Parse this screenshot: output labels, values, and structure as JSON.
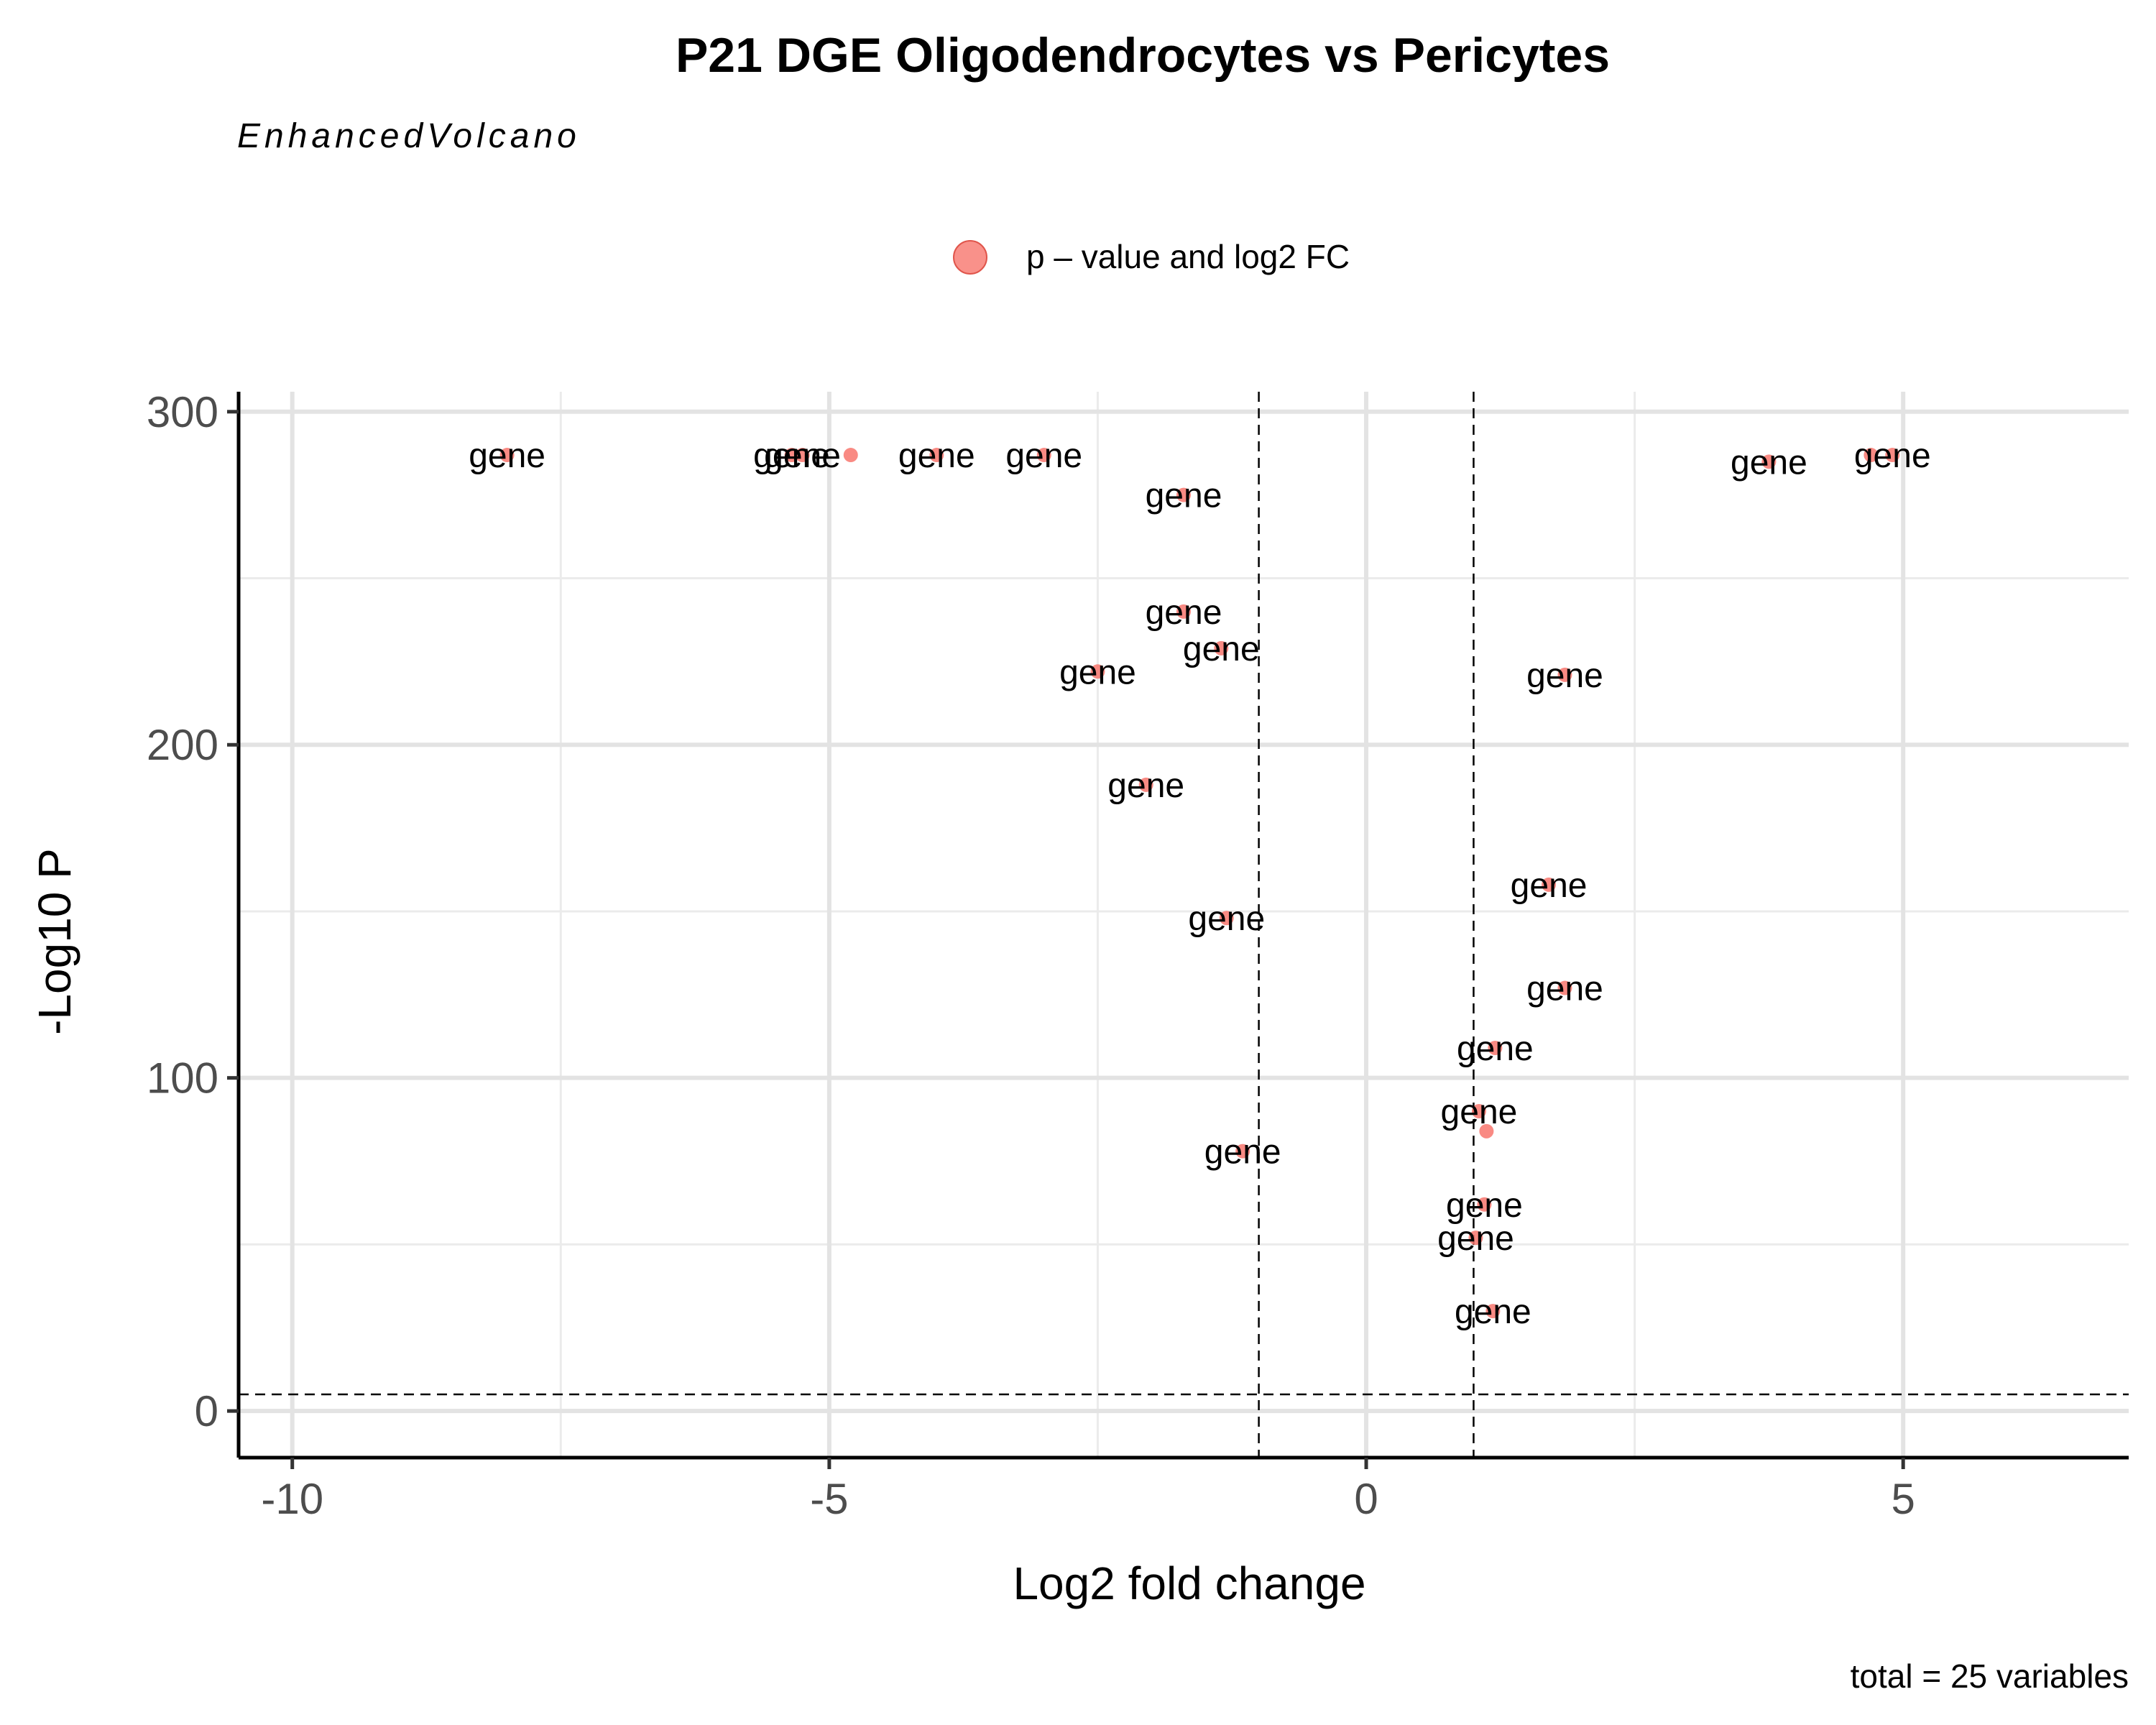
{
  "chart_data": {
    "type": "scatter",
    "title": "P21 DGE Oligodendrocytes vs Pericytes",
    "subtitle": "EnhancedVolcano",
    "xlabel": "Log2 fold change",
    "ylabel": "-Log10 P",
    "caption": "total = 25 variables",
    "legend": {
      "label": "p – value and log2 FC",
      "position": "top-center",
      "color": "#F8766D"
    },
    "xlim": [
      -10.5,
      7.1
    ],
    "ylim": [
      -14,
      306
    ],
    "x_ticks": [
      "-10",
      "-5",
      "0",
      "5"
    ],
    "x_tick_values": [
      -10,
      -5,
      0,
      5
    ],
    "y_ticks": [
      "0",
      "100",
      "200",
      "300"
    ],
    "y_tick_values": [
      0,
      100,
      200,
      300
    ],
    "fc_cutoff": 1,
    "p_cutoff_neglog10": 5,
    "grid": true,
    "point_color": "#F8766D",
    "series": [
      {
        "name": "p – value and log2 FC",
        "points": [
          {
            "x": -8.0,
            "y": 287,
            "label": "gene"
          },
          {
            "x": -5.35,
            "y": 287,
            "label": "gene"
          },
          {
            "x": -5.25,
            "y": 287,
            "label": "gene"
          },
          {
            "x": -4.8,
            "y": 287,
            "label": ""
          },
          {
            "x": -4.0,
            "y": 287,
            "label": "gene"
          },
          {
            "x": -3.0,
            "y": 287,
            "label": "gene"
          },
          {
            "x": -1.7,
            "y": 275,
            "label": "gene"
          },
          {
            "x": -1.7,
            "y": 240,
            "label": "gene"
          },
          {
            "x": -1.35,
            "y": 229,
            "label": "gene"
          },
          {
            "x": -2.5,
            "y": 222,
            "label": "gene"
          },
          {
            "x": -2.05,
            "y": 188,
            "label": "gene"
          },
          {
            "x": -1.3,
            "y": 148,
            "label": "gene"
          },
          {
            "x": -1.15,
            "y": 78,
            "label": "gene"
          },
          {
            "x": 1.85,
            "y": 221,
            "label": "gene"
          },
          {
            "x": 1.7,
            "y": 158,
            "label": "gene"
          },
          {
            "x": 1.85,
            "y": 127,
            "label": "gene"
          },
          {
            "x": 1.2,
            "y": 109,
            "label": "gene"
          },
          {
            "x": 1.05,
            "y": 90,
            "label": "gene"
          },
          {
            "x": 1.12,
            "y": 84,
            "label": ""
          },
          {
            "x": 1.1,
            "y": 62,
            "label": "gene"
          },
          {
            "x": 1.02,
            "y": 52,
            "label": "gene"
          },
          {
            "x": 1.18,
            "y": 30,
            "label": "gene"
          },
          {
            "x": 3.75,
            "y": 285,
            "label": "gene"
          },
          {
            "x": 4.7,
            "y": 287,
            "label": ""
          },
          {
            "x": 4.9,
            "y": 287,
            "label": "gene"
          }
        ]
      }
    ]
  }
}
